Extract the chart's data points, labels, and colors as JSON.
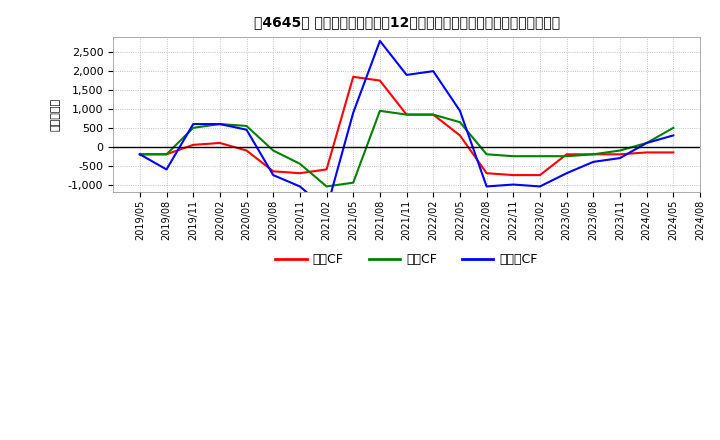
{
  "title": "、4645〃 キャッシュフローの12か月移動合計の対前年同期増減額の推移",
  "title_raw": "【4645】 キャッシュフローの12か月移動合計の対前年同期増減額の推移",
  "ylabel": "（百万円）",
  "ylim": [
    -1200,
    2900
  ],
  "yticks": [
    -1000,
    -500,
    0,
    500,
    1000,
    1500,
    2000,
    2500
  ],
  "x_labels": [
    "2019/05",
    "2019/08",
    "2019/11",
    "2020/02",
    "2020/05",
    "2020/08",
    "2020/11",
    "2021/02",
    "2021/05",
    "2021/08",
    "2021/11",
    "2022/02",
    "2022/05",
    "2022/08",
    "2022/11",
    "2023/02",
    "2023/05",
    "2023/08",
    "2023/11",
    "2024/02",
    "2024/05",
    "2024/08"
  ],
  "series": {
    "営業CF": {
      "color": "#ff0000",
      "values": [
        -200,
        -200,
        50,
        100,
        -100,
        -650,
        -700,
        -600,
        1850,
        1750,
        850,
        850,
        300,
        -700,
        -750,
        -750,
        -200,
        -200,
        -200,
        -150,
        -150,
        null
      ]
    },
    "投資CF": {
      "color": "#008000",
      "values": [
        -200,
        -200,
        500,
        600,
        550,
        -100,
        -450,
        -1050,
        -950,
        950,
        850,
        850,
        650,
        -200,
        -250,
        -250,
        -250,
        -200,
        -100,
        100,
        500,
        null
      ]
    },
    "フリーCF": {
      "color": "#0000ff",
      "values": [
        -200,
        -600,
        600,
        600,
        450,
        -750,
        -1050,
        -1650,
        900,
        2800,
        1900,
        2000,
        950,
        -1050,
        -1000,
        -1050,
        -700,
        -400,
        -300,
        100,
        300,
        null
      ]
    }
  },
  "legend_labels": [
    "営業CF",
    "投資CF",
    "フリーCF"
  ],
  "legend_labels_raw": [
    "営業CF",
    "投資CF",
    "フリーCF"
  ],
  "legend_colors": [
    "#ff0000",
    "#008000",
    "#0000ff"
  ],
  "background_color": "#ffffff",
  "grid_color": "#b0b0b0"
}
